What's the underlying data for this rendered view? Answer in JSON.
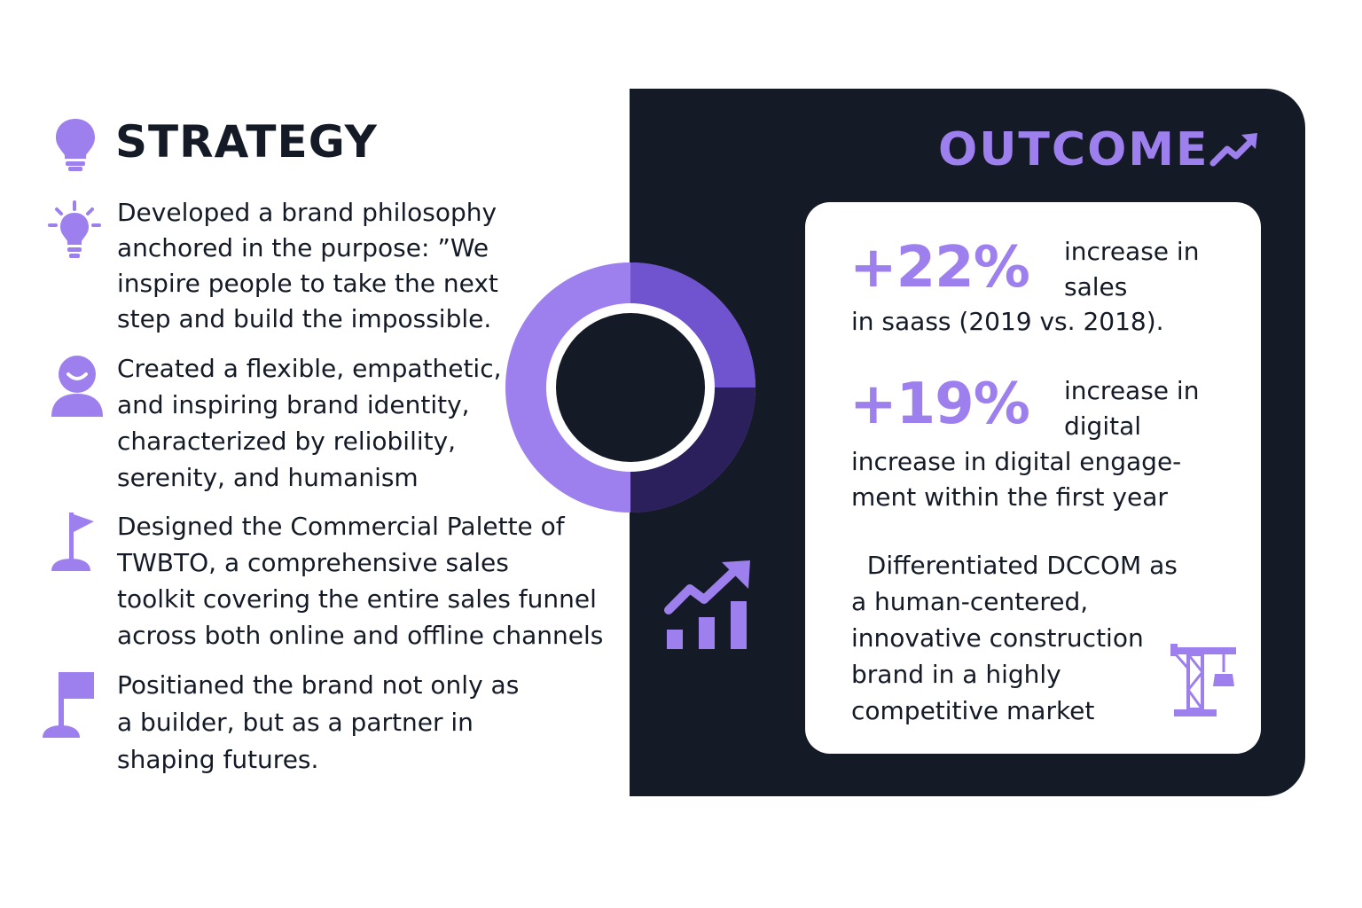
{
  "strategy": {
    "title": "STRATEGY",
    "icon": "lightbulb-icon",
    "items": [
      {
        "icon": "lightbulb-rays-icon",
        "lines": [
          "Developed a brand philosophy",
          "anchored in the purpose: ”We",
          "inspire people to take the next",
          "step and build the impossible."
        ]
      },
      {
        "icon": "person-smile-icon",
        "lines": [
          "Created a flexible, empathetic,",
          "and inspiring brand identity,",
          "characterized by reliobility,",
          "serenity, and humanism"
        ]
      },
      {
        "icon": "flag-small-icon",
        "lines": [
          "Designed the Commercial Palette of",
          "TWBTO, a comprehensive sales",
          "toolkit covering the entire sales funnel",
          "across both online and offline channels"
        ]
      },
      {
        "icon": "flag-icon",
        "lines": [
          "Positianed the brand not only as",
          "a builder, but as a partner in",
          "shaping futures."
        ]
      }
    ]
  },
  "outcome": {
    "title": "OUTCOME",
    "title_icon": "trend-arrow-icon",
    "stats": [
      {
        "value": "+22%",
        "side_lines": [
          "increase in",
          "sales"
        ],
        "detail_lines": [
          "in saass (2019 vs. 2018)."
        ]
      },
      {
        "value": "+19%",
        "side_lines": [
          "increase in",
          "digital"
        ],
        "detail_lines": [
          "increase in digital engage-",
          "ment within the first year"
        ]
      }
    ],
    "differentiator_lines": [
      "  Differentiated DCCOM as",
      "a human-centered,",
      "innovative construction",
      "brand in a highly",
      "competitive market"
    ],
    "differentiator_icon": "crane-icon"
  },
  "decor": {
    "donut_icon": "donut-ring-icon",
    "chart_icon": "bar-chart-growth-icon"
  },
  "colors": {
    "accent": "#9d80ee",
    "accent_mid": "#6f53cf",
    "accent_dark": "#2b1f5c",
    "panel": "#141b26",
    "text": "#141a26"
  }
}
